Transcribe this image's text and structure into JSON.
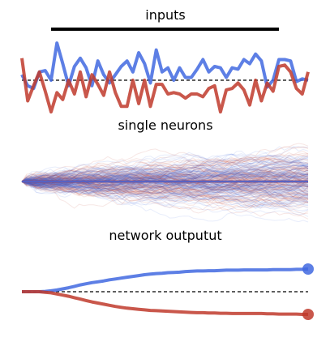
{
  "figure": {
    "colors": {
      "blue": "#4169e1",
      "red": "#c0392b",
      "black": "#000000"
    }
  },
  "chart_data": [
    {
      "type": "line",
      "title": "inputs",
      "x": [
        0,
        1,
        2,
        3,
        4,
        5,
        6,
        7,
        8,
        9,
        10,
        11,
        12,
        13,
        14,
        15,
        16,
        17,
        18,
        19,
        20,
        21,
        22,
        23,
        24,
        25,
        26,
        27,
        28,
        29,
        30,
        31,
        32,
        33,
        34,
        35,
        36,
        37,
        38,
        39,
        40,
        41,
        42,
        43,
        44,
        45,
        46,
        47,
        48,
        49
      ],
      "ylim": [
        -1.5,
        1.5
      ],
      "stimulus_bar": [
        5,
        44
      ],
      "reference_line": 0,
      "series": [
        {
          "color": "blue",
          "values": [
            0.2,
            -0.2,
            -0.3,
            0.3,
            0.35,
            0.0,
            1.35,
            0.6,
            -0.2,
            0.5,
            0.8,
            0.45,
            -0.2,
            0.7,
            0.2,
            -0.1,
            0.2,
            0.5,
            0.7,
            0.3,
            1.0,
            0.6,
            -0.1,
            1.1,
            0.3,
            0.45,
            0.0,
            0.45,
            0.1,
            0.1,
            0.4,
            0.75,
            0.3,
            0.5,
            0.45,
            0.1,
            0.45,
            0.4,
            0.75,
            0.6,
            0.95,
            0.7,
            -0.25,
            0.0,
            0.75,
            0.75,
            0.7,
            -0.05,
            0.05,
            0.0
          ]
        },
        {
          "color": "red",
          "values": [
            0.8,
            -0.75,
            -0.2,
            0.3,
            -0.4,
            -1.15,
            -0.45,
            -0.7,
            0.0,
            -0.5,
            0.3,
            -0.6,
            0.2,
            -0.15,
            -0.55,
            0.3,
            -0.45,
            -0.95,
            -0.95,
            0.0,
            -0.85,
            0.0,
            -0.95,
            -0.15,
            -0.15,
            -0.5,
            -0.45,
            -0.5,
            -0.65,
            -0.5,
            -0.5,
            -0.6,
            -0.3,
            -0.2,
            -1.15,
            -0.35,
            -0.3,
            -0.1,
            -0.35,
            -0.9,
            0.0,
            -0.75,
            -0.1,
            -0.4,
            0.5,
            0.55,
            0.3,
            -0.3,
            -0.5,
            0.3
          ]
        }
      ]
    },
    {
      "type": "line",
      "title": "single neurons",
      "x_range": [
        0,
        49
      ],
      "ylim": [
        -1,
        1
      ],
      "trace_count_per_color": 120,
      "spread_std_end": 0.32,
      "mean_value": 0,
      "series": [
        {
          "color": "red",
          "values_mean": 0
        },
        {
          "color": "blue",
          "values_mean": 0
        }
      ]
    },
    {
      "type": "line",
      "title": "network outputut",
      "x": [
        0,
        1,
        2,
        3,
        4,
        5,
        6,
        7,
        8,
        9,
        10,
        11,
        12,
        13,
        14,
        15,
        16,
        17,
        18,
        19,
        20,
        21,
        22,
        23,
        24,
        25,
        26,
        27,
        28,
        29,
        30,
        31,
        32,
        33,
        34,
        35,
        36,
        37,
        38,
        39,
        40,
        41,
        42,
        43,
        44,
        45,
        46,
        47,
        48,
        49
      ],
      "ylim": [
        -1.2,
        1.2
      ],
      "reference_line": 0,
      "series": [
        {
          "color": "blue",
          "values": [
            0,
            0,
            0,
            0,
            0.01,
            0.03,
            0.06,
            0.1,
            0.14,
            0.19,
            0.24,
            0.28,
            0.32,
            0.35,
            0.38,
            0.42,
            0.45,
            0.48,
            0.51,
            0.54,
            0.57,
            0.6,
            0.62,
            0.64,
            0.65,
            0.67,
            0.68,
            0.69,
            0.71,
            0.72,
            0.73,
            0.73,
            0.74,
            0.74,
            0.75,
            0.76,
            0.76,
            0.76,
            0.77,
            0.77,
            0.77,
            0.77,
            0.77,
            0.78,
            0.78,
            0.78,
            0.78,
            0.79,
            0.79,
            0.8
          ]
        },
        {
          "color": "red",
          "values": [
            0,
            0,
            0,
            0,
            -0.02,
            -0.04,
            -0.08,
            -0.12,
            -0.16,
            -0.21,
            -0.26,
            -0.31,
            -0.36,
            -0.4,
            -0.44,
            -0.48,
            -0.52,
            -0.55,
            -0.58,
            -0.6,
            -0.62,
            -0.64,
            -0.66,
            -0.67,
            -0.68,
            -0.69,
            -0.7,
            -0.71,
            -0.72,
            -0.73,
            -0.74,
            -0.74,
            -0.75,
            -0.75,
            -0.76,
            -0.76,
            -0.77,
            -0.77,
            -0.77,
            -0.77,
            -0.77,
            -0.77,
            -0.78,
            -0.78,
            -0.79,
            -0.79,
            -0.79,
            -0.79,
            -0.8,
            -0.8
          ]
        }
      ]
    }
  ]
}
